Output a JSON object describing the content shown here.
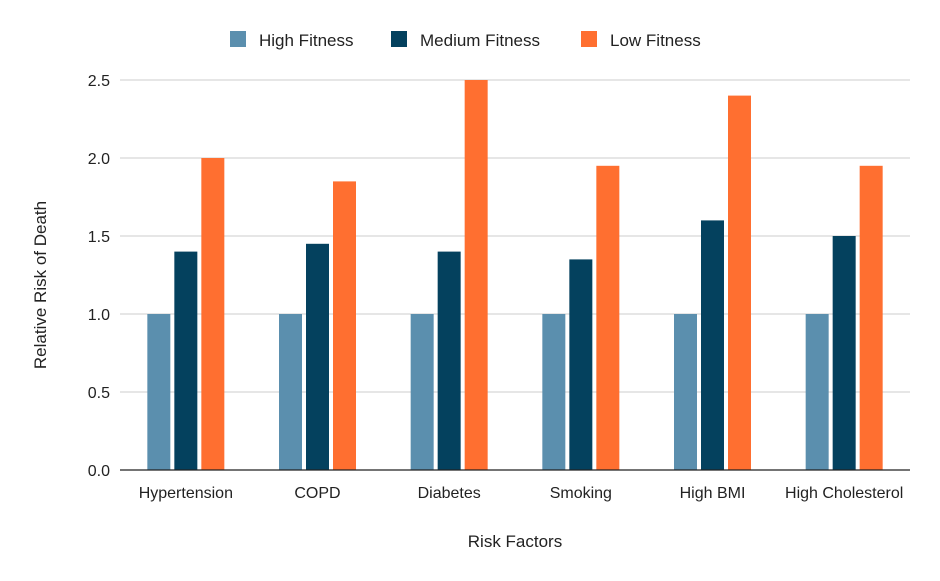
{
  "chart_data": {
    "type": "bar",
    "title": "",
    "xlabel": "Risk Factors",
    "ylabel": "Relative Risk of Death",
    "categories": [
      "Hypertension",
      "COPD",
      "Diabetes",
      "Smoking",
      "High BMI",
      "High Cholesterol"
    ],
    "series": [
      {
        "name": "High Fitness",
        "color": "#5b8fae",
        "values": [
          1.0,
          1.0,
          1.0,
          1.0,
          1.0,
          1.0
        ]
      },
      {
        "name": "Medium Fitness",
        "color": "#04415e",
        "values": [
          1.4,
          1.45,
          1.4,
          1.35,
          1.6,
          1.5
        ]
      },
      {
        "name": "Low Fitness",
        "color": "#ff6f30",
        "values": [
          2.0,
          1.85,
          2.5,
          1.95,
          2.4,
          1.95
        ]
      }
    ],
    "ylim": [
      0,
      2.5
    ],
    "yticks": [
      "0.0",
      "0.5",
      "1.0",
      "1.5",
      "2.0",
      "2.5"
    ],
    "grid": true,
    "legend_position": "top-center"
  }
}
